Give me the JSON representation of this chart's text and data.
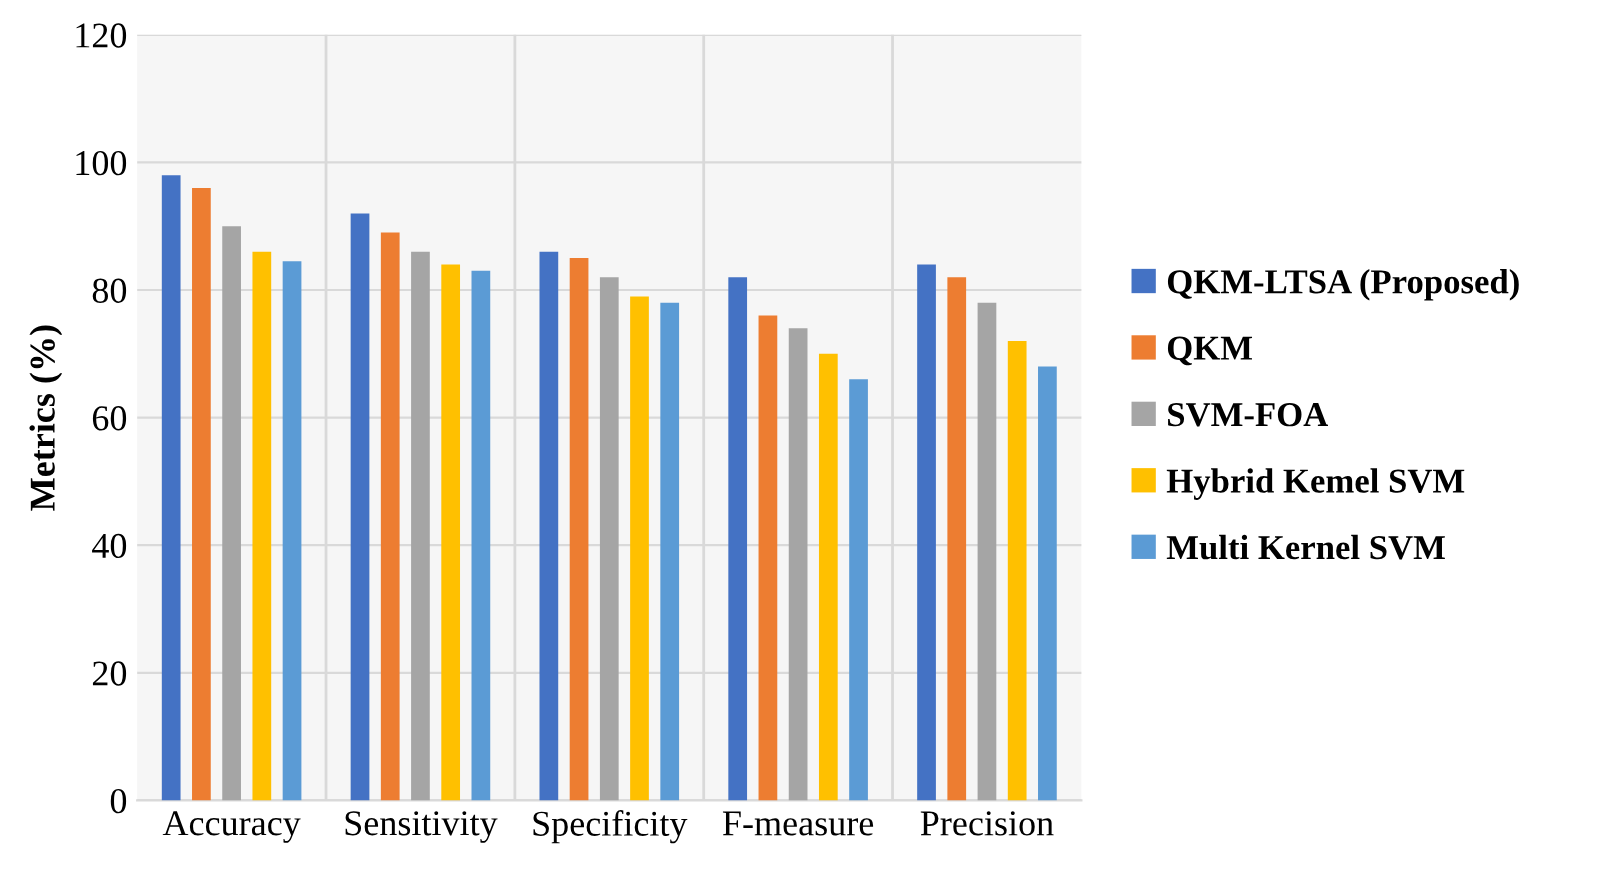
{
  "chart_data": {
    "type": "bar",
    "ylabel": "Metrics (%)",
    "categories": [
      "Accuracy",
      "Sensitivity",
      "Specificity",
      "F-measure",
      "Precision"
    ],
    "series": [
      {
        "name": "QKM-LTSA (Proposed)",
        "color": "#4472c4",
        "values": [
          98,
          92,
          86,
          82,
          84
        ]
      },
      {
        "name": "QKM",
        "color": "#ed7d31",
        "values": [
          96,
          89,
          85,
          76,
          82
        ]
      },
      {
        "name": "SVM-FOA",
        "color": "#a5a5a5",
        "values": [
          90,
          86,
          82,
          74,
          78
        ]
      },
      {
        "name": "Hybrid Kemel SVM",
        "color": "#ffc000",
        "values": [
          86,
          84,
          79,
          70,
          72
        ]
      },
      {
        "name": "Multi Kernel SVM",
        "color": "#5b9bd5",
        "values": [
          84.5,
          83,
          78,
          66,
          68
        ]
      }
    ],
    "ylim": [
      0,
      120
    ],
    "yticks": [
      0,
      20,
      40,
      60,
      80,
      100,
      120
    ],
    "grid": true,
    "legend": "right"
  }
}
